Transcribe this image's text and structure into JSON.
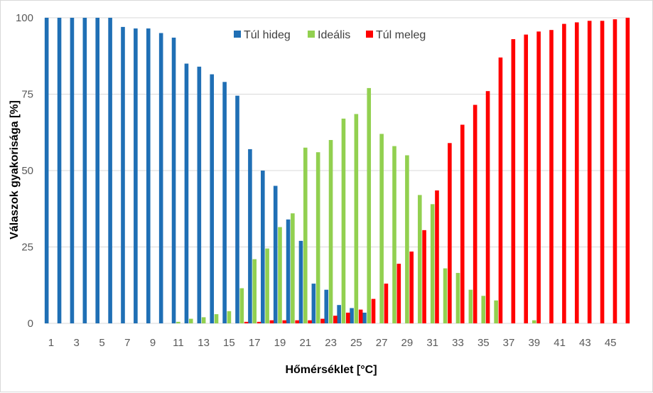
{
  "chart_data": {
    "type": "bar",
    "xlabel": "Hőmérséklet [°C]",
    "ylabel": "Válaszok gyakorisága [%]",
    "ylim": [
      0,
      100
    ],
    "yticks": [
      0,
      25,
      50,
      75,
      100
    ],
    "grid": true,
    "legend_position": "top",
    "categories": [
      1,
      2,
      3,
      4,
      5,
      6,
      7,
      8,
      9,
      10,
      11,
      12,
      13,
      14,
      15,
      16,
      17,
      18,
      19,
      20,
      21,
      22,
      23,
      24,
      25,
      26,
      27,
      28,
      29,
      30,
      31,
      32,
      33,
      34,
      35,
      36,
      37,
      38,
      39,
      40,
      41,
      42,
      43,
      44,
      45,
      46
    ],
    "xtick_labels": [
      "1",
      "3",
      "5",
      "7",
      "9",
      "11",
      "13",
      "15",
      "17",
      "19",
      "21",
      "23",
      "25",
      "27",
      "29",
      "31",
      "33",
      "35",
      "37",
      "39",
      "41",
      "43",
      "45"
    ],
    "series": [
      {
        "name": "Túl hideg",
        "color": "#1f6fb5",
        "values": [
          100,
          100,
          100,
          100,
          100,
          100,
          97,
          96.5,
          96.5,
          95,
          93.5,
          85,
          84,
          81.5,
          79,
          74.5,
          57,
          50,
          45,
          34,
          27,
          13,
          11,
          6,
          5,
          3.5,
          0,
          0,
          0,
          0,
          0,
          0,
          0,
          0,
          0,
          0,
          0,
          0,
          0,
          0,
          0,
          0,
          0,
          0,
          0,
          0
        ]
      },
      {
        "name": "Ideális",
        "color": "#92d050",
        "values": [
          0,
          0,
          0,
          0,
          0,
          0,
          0,
          0,
          0,
          0,
          0.5,
          1.5,
          2,
          3,
          4,
          11.5,
          21,
          24.5,
          31.5,
          36,
          57.5,
          56,
          60,
          67,
          68.5,
          77,
          62,
          58,
          55,
          42,
          39,
          18,
          16.5,
          11,
          9,
          7.5,
          0,
          0,
          1,
          0,
          0,
          0,
          0,
          0,
          0,
          0
        ]
      },
      {
        "name": "Túl meleg",
        "color": "#ff0000",
        "values": [
          0,
          0,
          0,
          0,
          0,
          0,
          0,
          0,
          0,
          0,
          0,
          0,
          0,
          0,
          0,
          0.5,
          0.5,
          1,
          1,
          1,
          1,
          1.5,
          2.5,
          3.5,
          4.5,
          8,
          13,
          19.5,
          23.5,
          30.5,
          43.5,
          59,
          65,
          71.5,
          76,
          87,
          93,
          94.5,
          95.5,
          96,
          98,
          98.5,
          99,
          99,
          99.5,
          100
        ]
      }
    ]
  }
}
